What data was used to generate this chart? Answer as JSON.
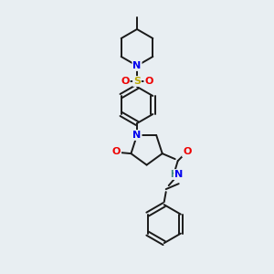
{
  "background_color": "#e8eef2",
  "bond_color": "#1a1a1a",
  "atom_colors": {
    "N": "#0000ee",
    "O": "#ee0000",
    "S": "#bbaa00",
    "H": "#3a8a7a",
    "C": "#1a1a1a"
  },
  "font_size": 7.5,
  "line_width": 1.4
}
